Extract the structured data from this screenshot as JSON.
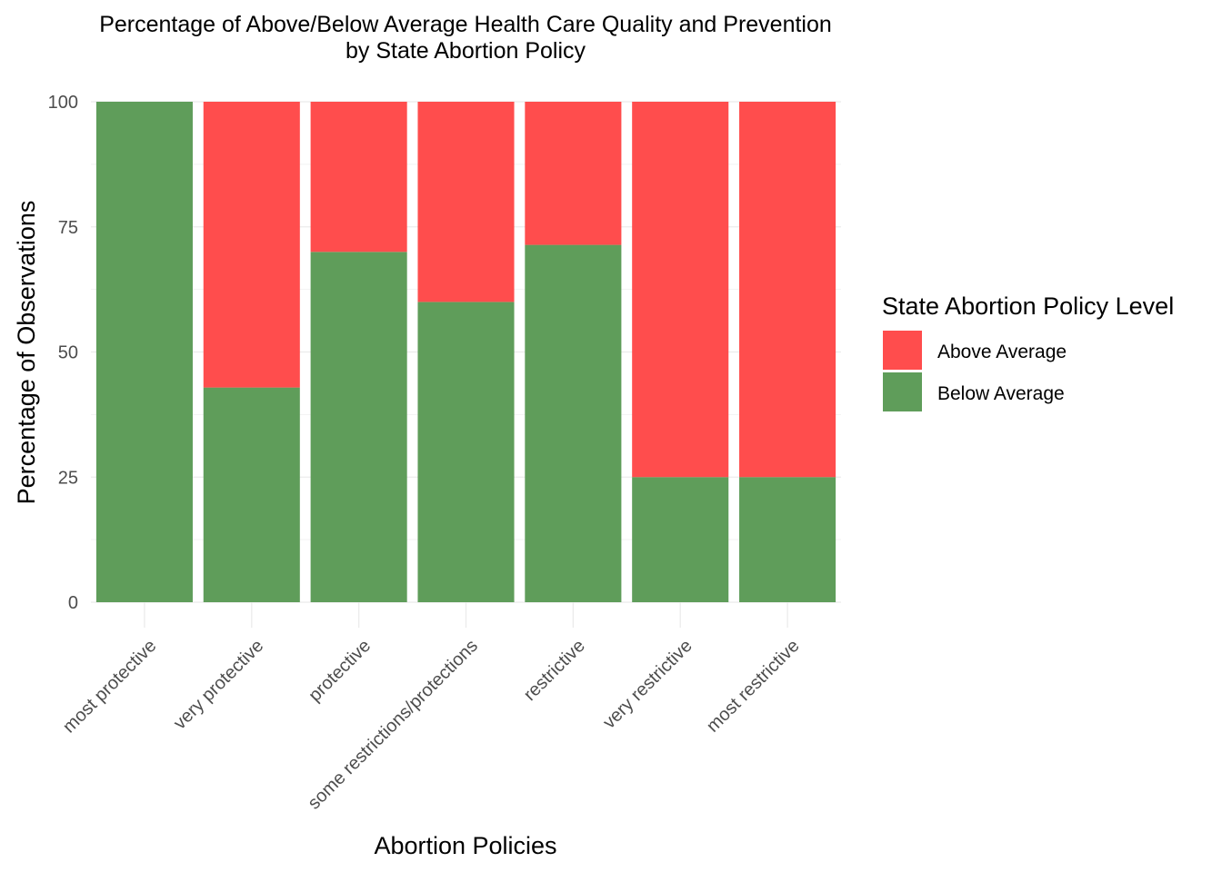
{
  "chart_data": {
    "type": "bar",
    "stacked": true,
    "title_line1": "Percentage of Above/Below Average Health Care Quality and Prevention",
    "title_line2": "by State Abortion Policy",
    "xlabel": "Abortion Policies",
    "ylabel": "Percentage of Observations",
    "ylim": [
      0,
      100
    ],
    "yticks": [
      "0",
      "25",
      "50",
      "75",
      "100"
    ],
    "grid": true,
    "legend_position": "right",
    "legend_title": "State Abortion Policy Level",
    "categories": [
      "most protective",
      "very protective",
      "protective",
      "some restrictions/protections",
      "restrictive",
      "very restrictive",
      "most restrictive"
    ],
    "series": [
      {
        "name": "Below Average",
        "color": "#5f9d5a",
        "values": [
          100,
          42.9,
          70,
          60,
          71.4,
          25,
          25
        ]
      },
      {
        "name": "Above Average",
        "color": "#ff4d4d",
        "values": [
          0,
          57.1,
          30,
          40,
          28.6,
          75,
          75
        ]
      }
    ],
    "legend_order": [
      "Above Average",
      "Below Average"
    ]
  }
}
